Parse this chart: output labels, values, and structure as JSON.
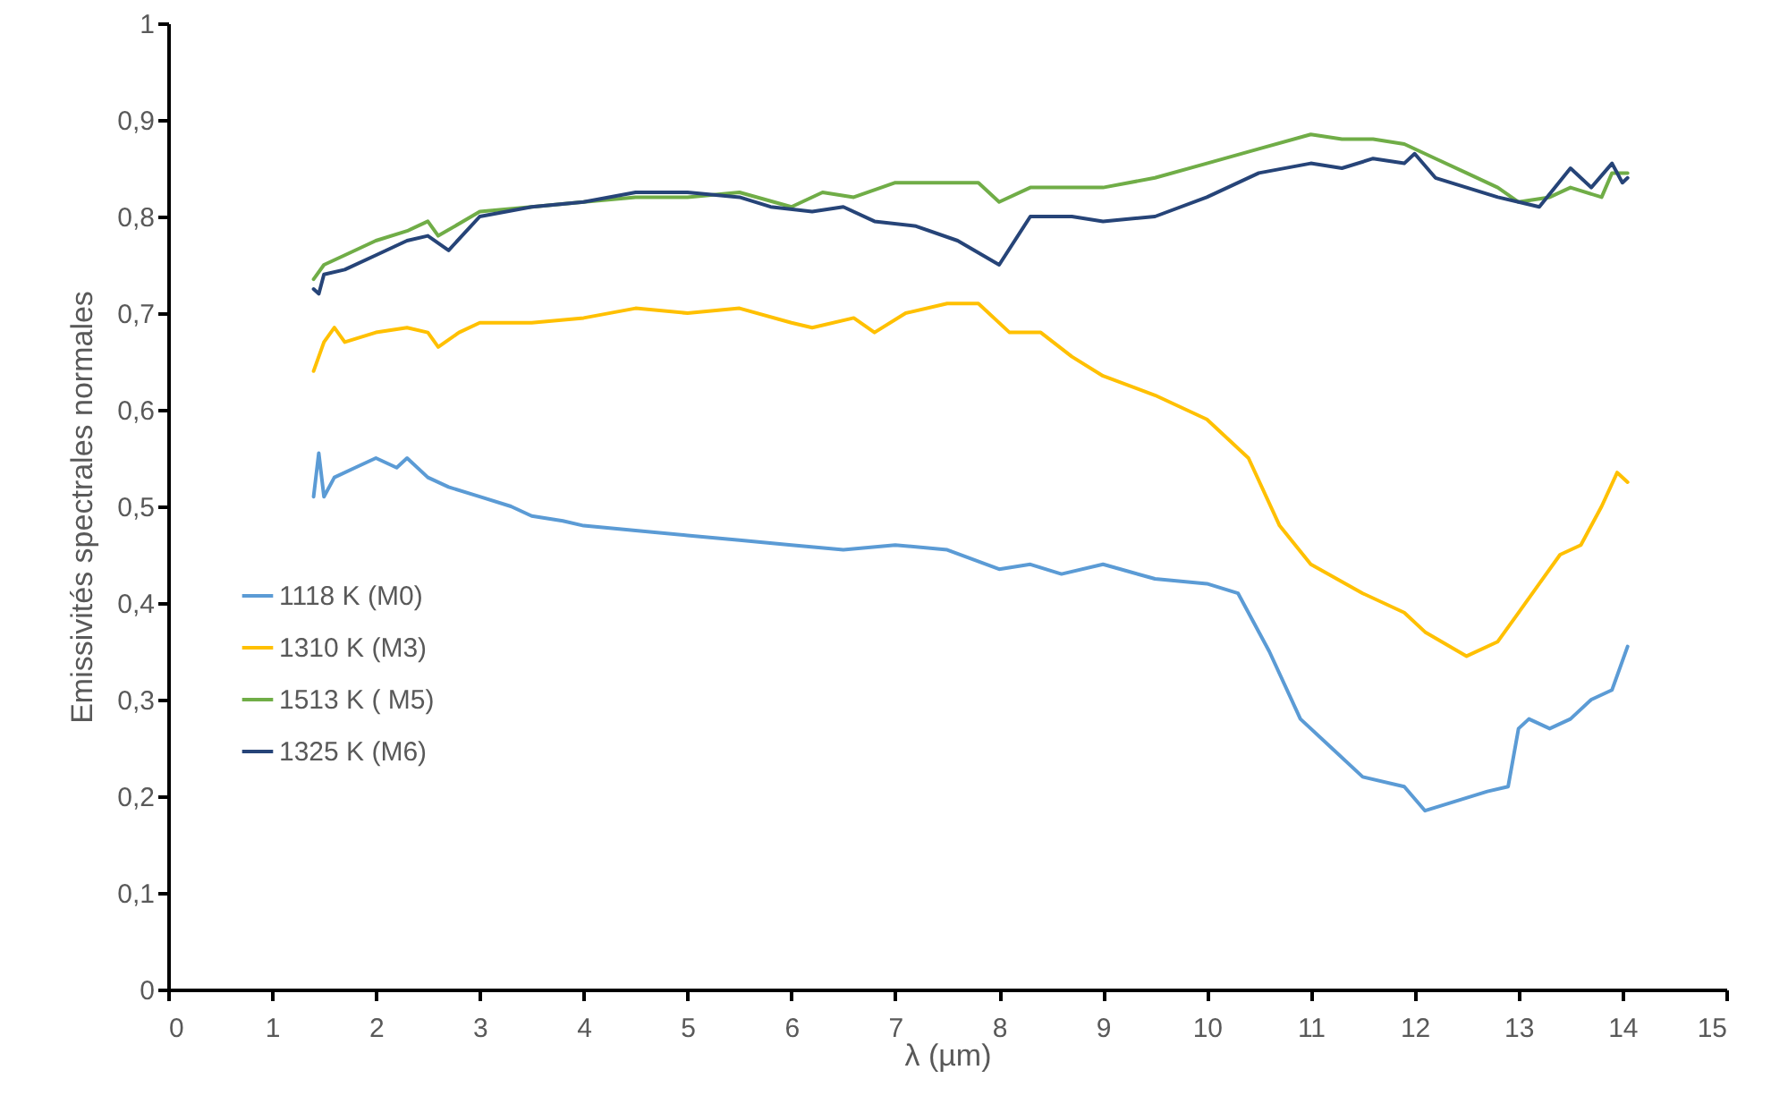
{
  "chart_data": {
    "type": "line",
    "xlabel": "λ (µm)",
    "ylabel": "Emissivités spectrales normales",
    "xlim": [
      0,
      15
    ],
    "xticks": [
      0,
      1,
      2,
      3,
      4,
      5,
      6,
      7,
      8,
      9,
      10,
      11,
      12,
      13,
      14,
      15
    ],
    "ylim": [
      0,
      1
    ],
    "yticks": [
      0,
      {
        "value": 0.1,
        "label": "0,1"
      },
      {
        "value": 0.2,
        "label": "0,2"
      },
      {
        "value": 0.3,
        "label": "0,3"
      },
      {
        "value": 0.4,
        "label": "0,4"
      },
      {
        "value": 0.5,
        "label": "0,5"
      },
      {
        "value": 0.6,
        "label": "0,6"
      },
      {
        "value": 0.7,
        "label": "0,7"
      },
      {
        "value": 0.8,
        "label": "0,8"
      },
      {
        "value": 0.9,
        "label": "0,9"
      },
      1
    ],
    "grid": false,
    "legend": "bottom left",
    "line_style": "solid",
    "series": [
      {
        "name": "1118 K (M0)",
        "color": "#5b9bd5",
        "x": [
          1.4,
          1.45,
          1.5,
          1.6,
          1.8,
          2.0,
          2.2,
          2.3,
          2.5,
          2.7,
          3.0,
          3.3,
          3.5,
          3.8,
          4.0,
          4.5,
          5.0,
          5.5,
          6.0,
          6.5,
          7.0,
          7.5,
          8.0,
          8.3,
          8.6,
          9.0,
          9.5,
          10.0,
          10.3,
          10.6,
          10.9,
          11.2,
          11.5,
          11.9,
          12.1,
          12.4,
          12.7,
          12.9,
          13.0,
          13.1,
          13.3,
          13.5,
          13.7,
          13.9,
          14.05
        ],
        "values": [
          0.51,
          0.555,
          0.51,
          0.53,
          0.54,
          0.55,
          0.54,
          0.55,
          0.53,
          0.52,
          0.51,
          0.5,
          0.49,
          0.485,
          0.48,
          0.475,
          0.47,
          0.465,
          0.46,
          0.455,
          0.46,
          0.455,
          0.435,
          0.44,
          0.43,
          0.44,
          0.425,
          0.42,
          0.41,
          0.35,
          0.28,
          0.25,
          0.22,
          0.21,
          0.185,
          0.195,
          0.205,
          0.21,
          0.27,
          0.28,
          0.27,
          0.28,
          0.3,
          0.31,
          0.355
        ]
      },
      {
        "name": "1310 K (M3)",
        "color": "#ffc000",
        "x": [
          1.4,
          1.5,
          1.6,
          1.7,
          2.0,
          2.3,
          2.5,
          2.6,
          2.8,
          3.0,
          3.5,
          4.0,
          4.5,
          5.0,
          5.5,
          6.0,
          6.2,
          6.6,
          6.8,
          7.1,
          7.5,
          7.8,
          8.1,
          8.4,
          8.7,
          9.0,
          9.5,
          10.0,
          10.4,
          10.7,
          11.0,
          11.5,
          11.9,
          12.1,
          12.5,
          12.8,
          13.0,
          13.2,
          13.4,
          13.6,
          13.8,
          13.95,
          14.05
        ],
        "values": [
          0.64,
          0.67,
          0.685,
          0.67,
          0.68,
          0.685,
          0.68,
          0.665,
          0.68,
          0.69,
          0.69,
          0.695,
          0.705,
          0.7,
          0.705,
          0.69,
          0.685,
          0.695,
          0.68,
          0.7,
          0.71,
          0.71,
          0.68,
          0.68,
          0.655,
          0.635,
          0.615,
          0.59,
          0.55,
          0.48,
          0.44,
          0.41,
          0.39,
          0.37,
          0.345,
          0.36,
          0.39,
          0.42,
          0.45,
          0.46,
          0.5,
          0.535,
          0.525
        ]
      },
      {
        "name": "1513 K ( M5)",
        "color": "#70ad47",
        "x": [
          1.4,
          1.5,
          1.7,
          2.0,
          2.3,
          2.5,
          2.6,
          3.0,
          3.5,
          4.0,
          4.5,
          5.0,
          5.5,
          6.0,
          6.3,
          6.6,
          7.0,
          7.5,
          7.8,
          8.0,
          8.3,
          9.0,
          9.5,
          10.0,
          10.5,
          11.0,
          11.3,
          11.6,
          11.9,
          12.2,
          12.5,
          12.8,
          13.0,
          13.3,
          13.5,
          13.8,
          13.9,
          14.05
        ],
        "values": [
          0.735,
          0.75,
          0.76,
          0.775,
          0.785,
          0.795,
          0.78,
          0.805,
          0.81,
          0.815,
          0.82,
          0.82,
          0.825,
          0.81,
          0.825,
          0.82,
          0.835,
          0.835,
          0.835,
          0.815,
          0.83,
          0.83,
          0.84,
          0.855,
          0.87,
          0.885,
          0.88,
          0.88,
          0.875,
          0.86,
          0.845,
          0.83,
          0.815,
          0.82,
          0.83,
          0.82,
          0.845,
          0.845
        ]
      },
      {
        "name": "1325 K (M6)",
        "color": "#264478",
        "x": [
          1.4,
          1.45,
          1.5,
          1.7,
          2.0,
          2.3,
          2.5,
          2.7,
          3.0,
          3.5,
          4.0,
          4.5,
          5.0,
          5.5,
          5.8,
          6.2,
          6.5,
          6.8,
          7.2,
          7.6,
          8.0,
          8.3,
          8.7,
          9.0,
          9.5,
          10.0,
          10.5,
          11.0,
          11.3,
          11.6,
          11.9,
          12.0,
          12.2,
          12.5,
          12.8,
          13.0,
          13.2,
          13.5,
          13.7,
          13.9,
          14.0,
          14.05
        ],
        "values": [
          0.725,
          0.72,
          0.74,
          0.745,
          0.76,
          0.775,
          0.78,
          0.765,
          0.8,
          0.81,
          0.815,
          0.825,
          0.825,
          0.82,
          0.81,
          0.805,
          0.81,
          0.795,
          0.79,
          0.775,
          0.75,
          0.8,
          0.8,
          0.795,
          0.8,
          0.82,
          0.845,
          0.855,
          0.85,
          0.86,
          0.855,
          0.865,
          0.84,
          0.83,
          0.82,
          0.815,
          0.81,
          0.85,
          0.83,
          0.855,
          0.835,
          0.84
        ]
      }
    ]
  }
}
